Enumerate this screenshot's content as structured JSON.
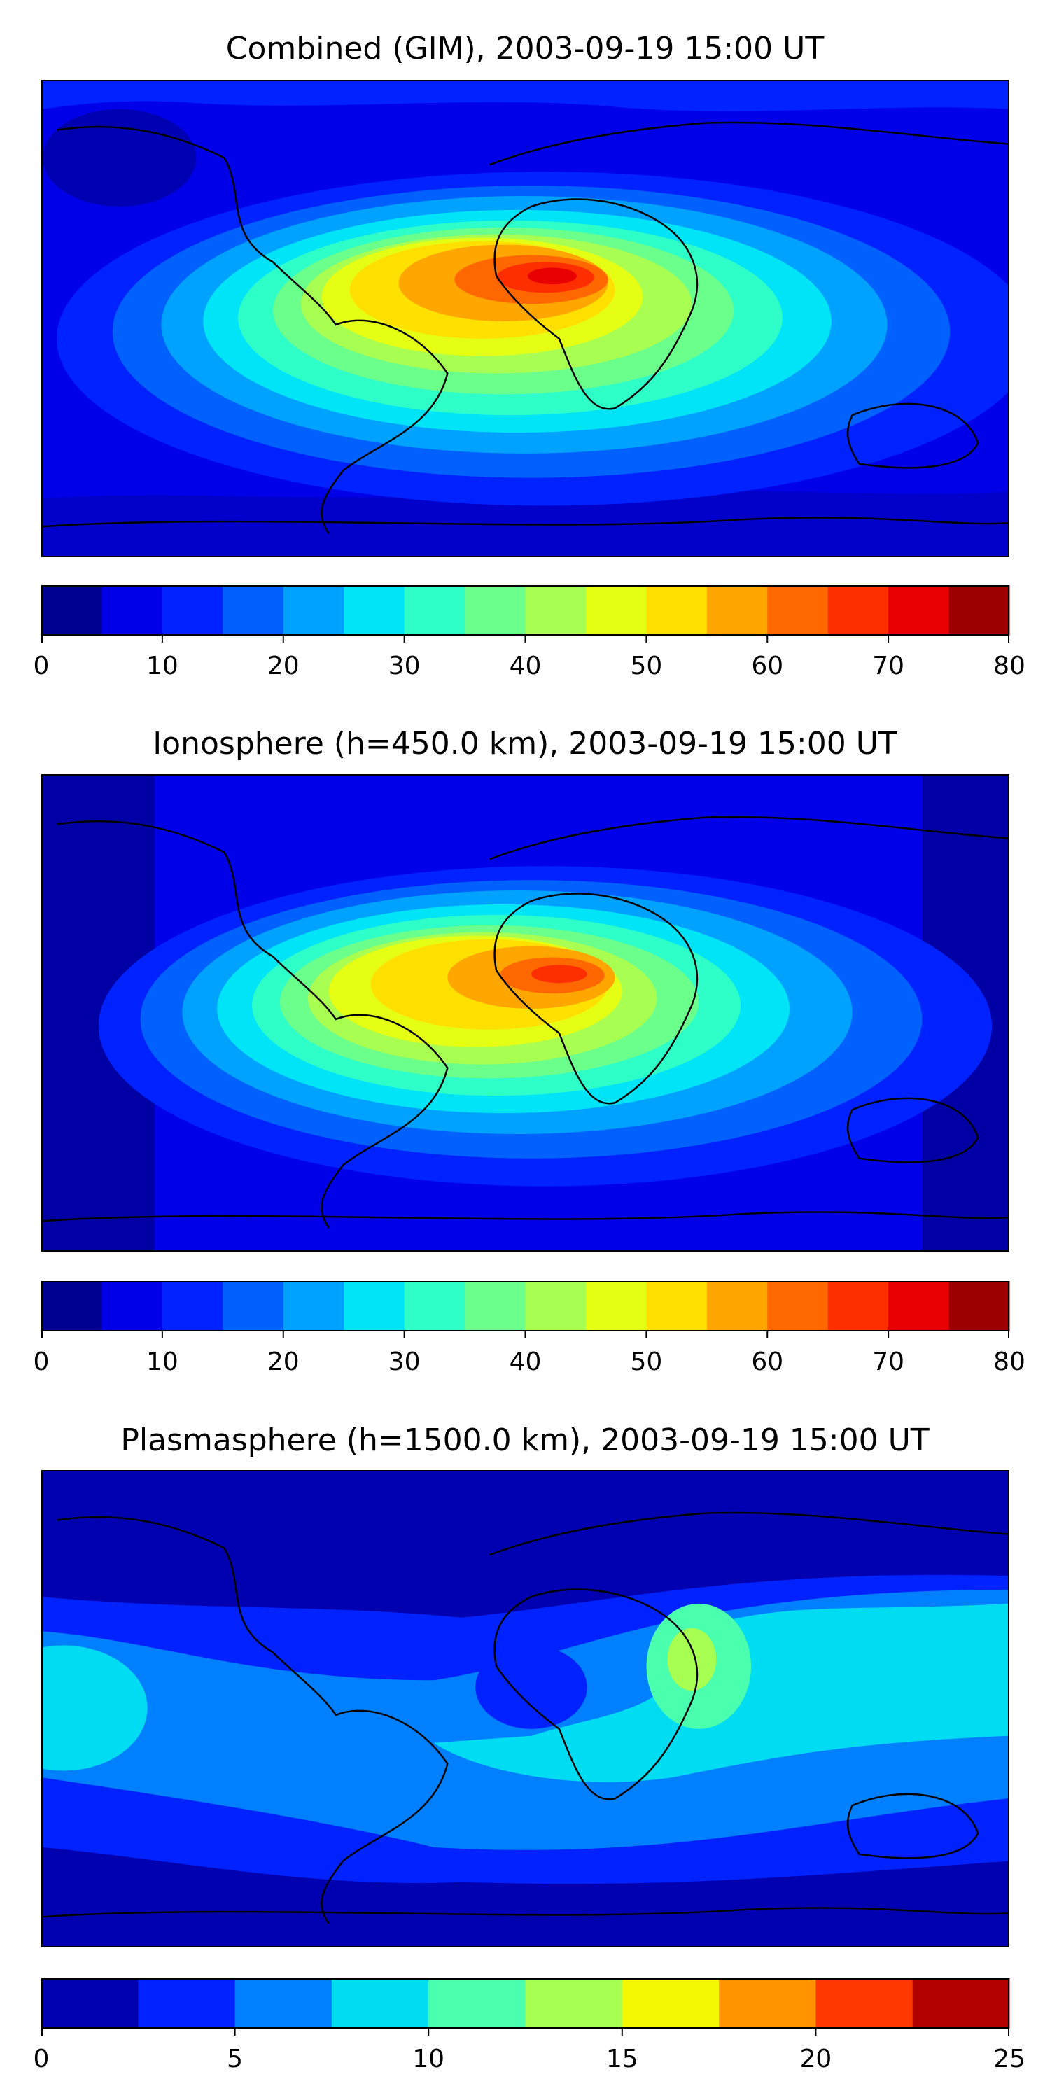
{
  "chart_data": [
    {
      "type": "heatmap",
      "title": "Combined (GIM), 2003-09-19 15:00 UT",
      "colorbar": {
        "bounds": [
          0,
          5,
          10,
          15,
          20,
          25,
          30,
          35,
          40,
          45,
          50,
          55,
          60,
          65,
          70,
          75,
          80
        ],
        "colors": [
          "#00008f",
          "#0000e8",
          "#0022ff",
          "#0061ff",
          "#00a2ff",
          "#00e4f8",
          "#2effc9",
          "#6bff8c",
          "#a8ff51",
          "#e4ff14",
          "#ffe000",
          "#ffa600",
          "#ff6800",
          "#ff2e00",
          "#e80000",
          "#9c0000"
        ],
        "tick_labels": [
          "0",
          "10",
          "20",
          "30",
          "40",
          "50",
          "60",
          "70",
          "80"
        ],
        "tick_values": [
          0,
          10,
          20,
          30,
          40,
          50,
          60,
          70,
          80
        ]
      },
      "peak_value_approx": 75,
      "background_value_approx": 7
    },
    {
      "type": "heatmap",
      "title": "Ionosphere  (h=450.0 km), 2003-09-19 15:00 UT",
      "colorbar": {
        "bounds": [
          0,
          5,
          10,
          15,
          20,
          25,
          30,
          35,
          40,
          45,
          50,
          55,
          60,
          65,
          70,
          75,
          80
        ],
        "colors": [
          "#00008f",
          "#0000e8",
          "#0022ff",
          "#0061ff",
          "#00a2ff",
          "#00e4f8",
          "#2effc9",
          "#6bff8c",
          "#a8ff51",
          "#e4ff14",
          "#ffe000",
          "#ffa600",
          "#ff6800",
          "#ff2e00",
          "#e80000",
          "#9c0000"
        ],
        "tick_labels": [
          "0",
          "10",
          "20",
          "30",
          "40",
          "50",
          "60",
          "70",
          "80"
        ],
        "tick_values": [
          0,
          10,
          20,
          30,
          40,
          50,
          60,
          70,
          80
        ]
      },
      "peak_value_approx": 70,
      "background_value_approx": 4
    },
    {
      "type": "heatmap",
      "title": "Plasmasphere (h=1500.0 km), 2003-09-19 15:00 UT",
      "colorbar": {
        "bounds": [
          0,
          2.5,
          5,
          7.5,
          10,
          12.5,
          15,
          17.5,
          20,
          22.5,
          25
        ],
        "colors": [
          "#0000b0",
          "#0022ff",
          "#0080ff",
          "#00dcf2",
          "#4affad",
          "#a6ff51",
          "#f4f800",
          "#ff9400",
          "#ff3800",
          "#b30000"
        ],
        "tick_labels": [
          "0",
          "5",
          "10",
          "15",
          "20",
          "25"
        ],
        "tick_values": [
          0,
          5,
          10,
          15,
          20,
          25
        ]
      },
      "peak_value_approx": 13,
      "background_value_approx": 3
    }
  ]
}
